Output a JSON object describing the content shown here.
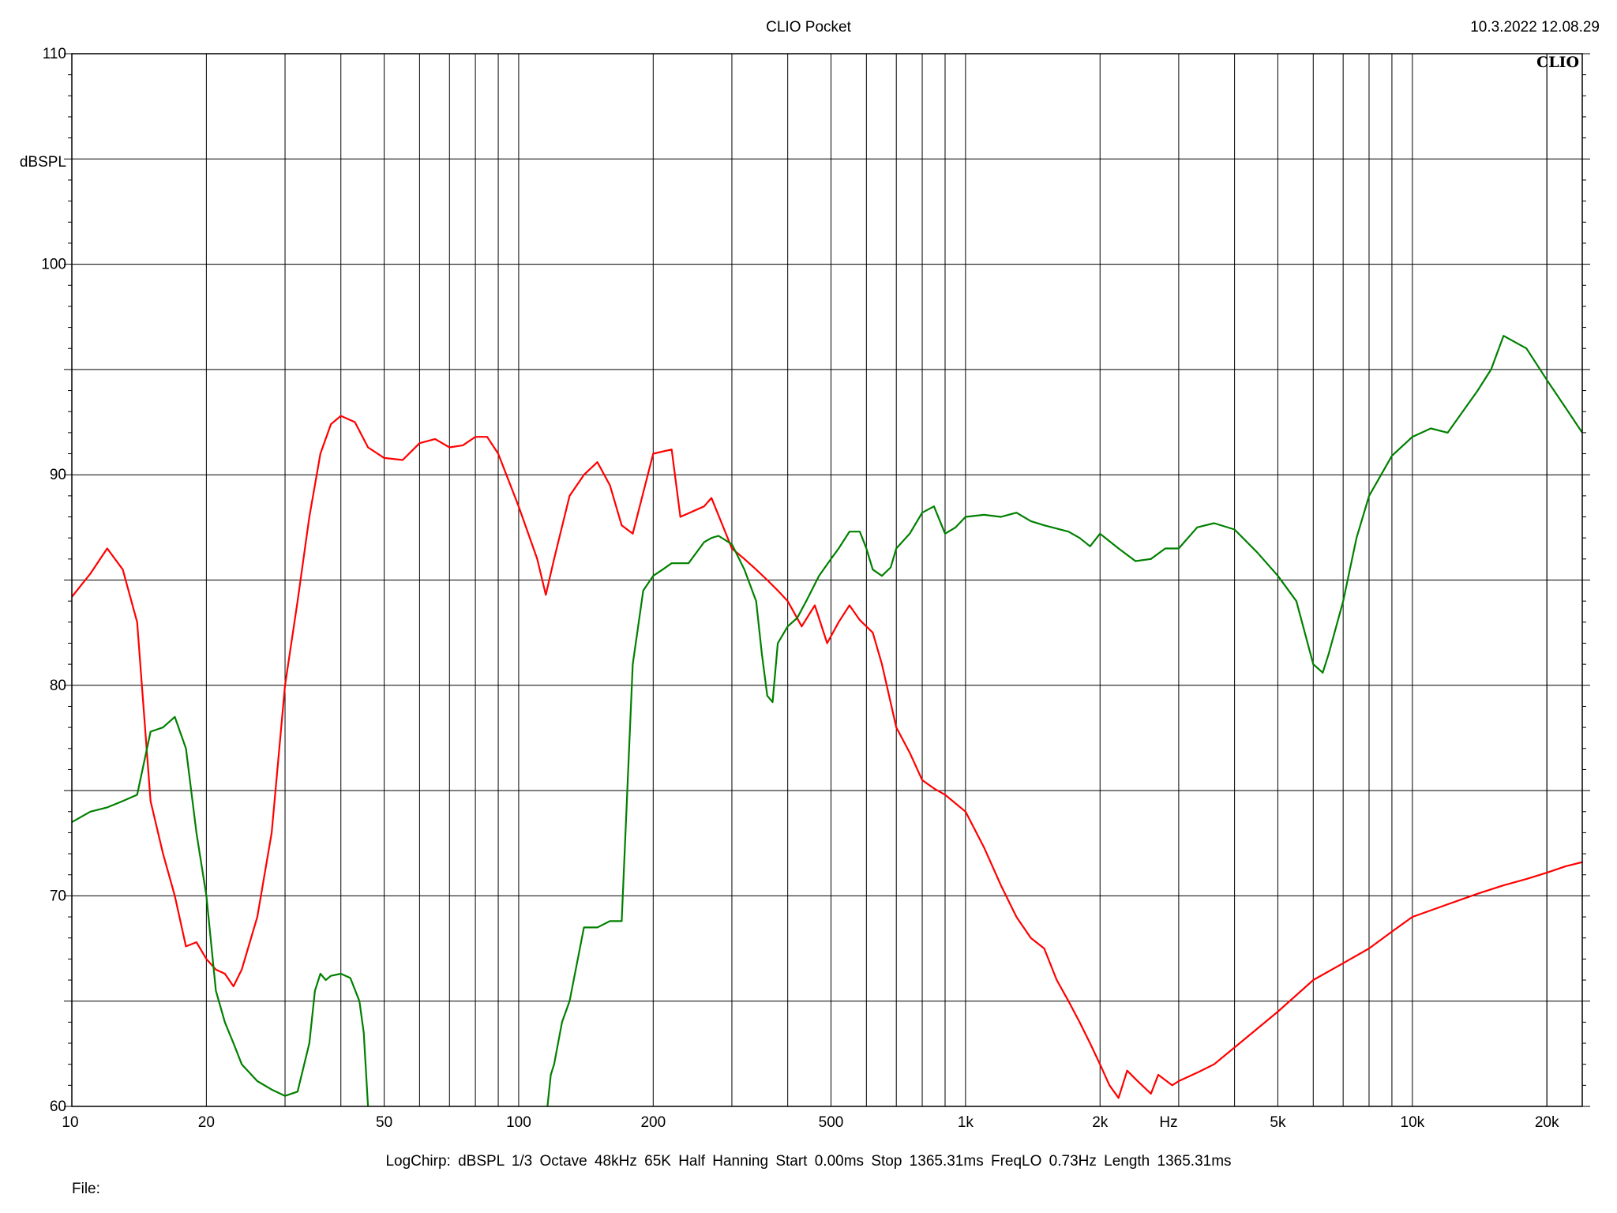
{
  "header": {
    "title": "CLIO Pocket",
    "timestamp": "10.3.2022 12.08.29",
    "brand": "CLIO"
  },
  "footer": {
    "info": "LogChirp:  dBSPL   1/3 Octave   48kHz   65K   Half Hanning   Start 0.00ms   Stop 1365.31ms   FreqLO 0.73Hz   Length 1365.31ms",
    "file_label": "File:"
  },
  "chart_data": {
    "type": "line",
    "title": "",
    "xlabel": "Hz",
    "ylabel": "dBSPL",
    "x_scale": "log",
    "xlim": [
      10,
      24000
    ],
    "ylim": [
      60,
      110
    ],
    "grid": true,
    "x_major_ticks": [
      10,
      20,
      50,
      100,
      200,
      500,
      1000,
      2000,
      5000,
      10000,
      20000
    ],
    "x_tick_labels": [
      "10",
      "20",
      "50",
      "100",
      "200",
      "500",
      "1k",
      "2k",
      "5k",
      "10k",
      "20k"
    ],
    "y_tick_values": [
      60,
      70,
      80,
      90,
      100,
      110
    ],
    "y_tick_labels": [
      "60",
      "70",
      "80",
      "90",
      "100",
      "110"
    ],
    "series": [
      {
        "color": "#ff0000",
        "x": [
          10,
          11,
          12,
          13,
          14,
          15,
          16,
          17,
          18,
          19,
          20,
          21,
          22,
          23,
          24,
          26,
          28,
          30,
          32,
          34,
          36,
          38,
          40,
          43,
          46,
          50,
          55,
          60,
          65,
          70,
          75,
          80,
          85,
          90,
          100,
          110,
          115,
          120,
          130,
          140,
          150,
          160,
          170,
          180,
          200,
          220,
          230,
          260,
          270,
          300,
          320,
          340,
          360,
          380,
          400,
          430,
          460,
          490,
          520,
          550,
          580,
          620,
          650,
          700,
          750,
          800,
          850,
          900,
          1000,
          1100,
          1200,
          1300,
          1400,
          1500,
          1600,
          1700,
          1800,
          1900,
          2000,
          2100,
          2200,
          2300,
          2400,
          2600,
          2700,
          2900,
          3000,
          3300,
          3600,
          4000,
          5000,
          6000,
          7000,
          8000,
          9000,
          10000,
          12000,
          14000,
          16000,
          18000,
          20000,
          22000,
          24000
        ],
        "y": [
          84.2,
          85.3,
          86.5,
          85.5,
          83.0,
          74.5,
          72.0,
          70.0,
          67.6,
          67.8,
          67.0,
          66.5,
          66.3,
          65.7,
          66.5,
          69.0,
          73.0,
          80.0,
          84.0,
          88.0,
          91.0,
          92.4,
          92.8,
          92.5,
          91.3,
          90.8,
          90.7,
          91.5,
          91.7,
          91.3,
          91.4,
          91.8,
          91.8,
          91.0,
          88.5,
          86.0,
          84.3,
          86.0,
          89.0,
          90.0,
          90.6,
          89.5,
          87.6,
          87.2,
          91.0,
          91.2,
          88.0,
          88.5,
          88.9,
          86.5,
          86.0,
          85.5,
          85.0,
          84.5,
          84.0,
          82.8,
          83.8,
          82.0,
          83.0,
          83.8,
          83.1,
          82.5,
          81.0,
          78.0,
          76.8,
          75.5,
          75.1,
          74.8,
          74.0,
          72.3,
          70.5,
          69.0,
          68.0,
          67.5,
          66.0,
          65.0,
          64.0,
          63.0,
          62.0,
          61.0,
          60.4,
          61.7,
          61.3,
          60.6,
          61.5,
          61.0,
          61.2,
          61.6,
          62.0,
          62.8,
          64.5,
          66.0,
          66.8,
          67.5,
          68.3,
          69.0,
          69.6,
          70.1,
          70.5,
          70.8,
          71.1,
          71.4,
          71.6
        ]
      },
      {
        "color": "#008000",
        "x": [
          10,
          11,
          12,
          13,
          14,
          15,
          16,
          17,
          18,
          19,
          20,
          21,
          22,
          23,
          24,
          26,
          28,
          30,
          32,
          34,
          35,
          36,
          37,
          38,
          40,
          42,
          44,
          45,
          46
        ],
        "y": [
          73.5,
          74.0,
          74.2,
          74.5,
          74.8,
          77.8,
          78.0,
          78.5,
          77.0,
          73.0,
          70.0,
          65.5,
          64.0,
          63.0,
          62.0,
          61.2,
          60.8,
          60.5,
          60.7,
          63.0,
          65.5,
          66.3,
          66.0,
          66.2,
          66.3,
          66.1,
          65.0,
          63.5,
          60.0
        ]
      },
      {
        "color": "#008000",
        "x": [
          116,
          118,
          120,
          125,
          130,
          140,
          150,
          160,
          170,
          180,
          190,
          200,
          210,
          220,
          240,
          260,
          270,
          280,
          300,
          320,
          340,
          350,
          360,
          370,
          380,
          400,
          420,
          440,
          470,
          500,
          520,
          550,
          580,
          600,
          620,
          650,
          680,
          700,
          750,
          800,
          850,
          900,
          950,
          1000,
          1100,
          1200,
          1300,
          1400,
          1500,
          1700,
          1800,
          1900,
          2000,
          2200,
          2400,
          2600,
          2800,
          3000,
          3300,
          3600,
          4000,
          4500,
          5000,
          5500,
          6000,
          6300,
          6500,
          7000,
          7500,
          8000,
          9000,
          10000,
          11000,
          12000,
          14000,
          15000,
          16000,
          18000,
          20000,
          22000,
          24000
        ],
        "y": [
          60.0,
          61.5,
          62.0,
          64.0,
          65.0,
          68.5,
          68.5,
          68.8,
          68.8,
          81.0,
          84.5,
          85.2,
          85.5,
          85.8,
          85.8,
          86.8,
          87.0,
          87.1,
          86.7,
          85.5,
          84.0,
          81.5,
          79.5,
          79.2,
          82.0,
          82.8,
          83.2,
          84.0,
          85.2,
          86.0,
          86.5,
          87.3,
          87.3,
          86.5,
          85.5,
          85.2,
          85.6,
          86.5,
          87.2,
          88.2,
          88.5,
          87.2,
          87.5,
          88.0,
          88.1,
          88.0,
          88.2,
          87.8,
          87.6,
          87.3,
          87.0,
          86.6,
          87.2,
          86.5,
          85.9,
          86.0,
          86.5,
          86.5,
          87.5,
          87.7,
          87.4,
          86.3,
          85.2,
          84.0,
          81.0,
          80.6,
          81.5,
          84.0,
          87.0,
          89.0,
          90.9,
          91.8,
          92.2,
          92.0,
          94.0,
          95.0,
          96.6,
          96.0,
          94.5,
          93.2,
          92.0
        ]
      }
    ]
  }
}
